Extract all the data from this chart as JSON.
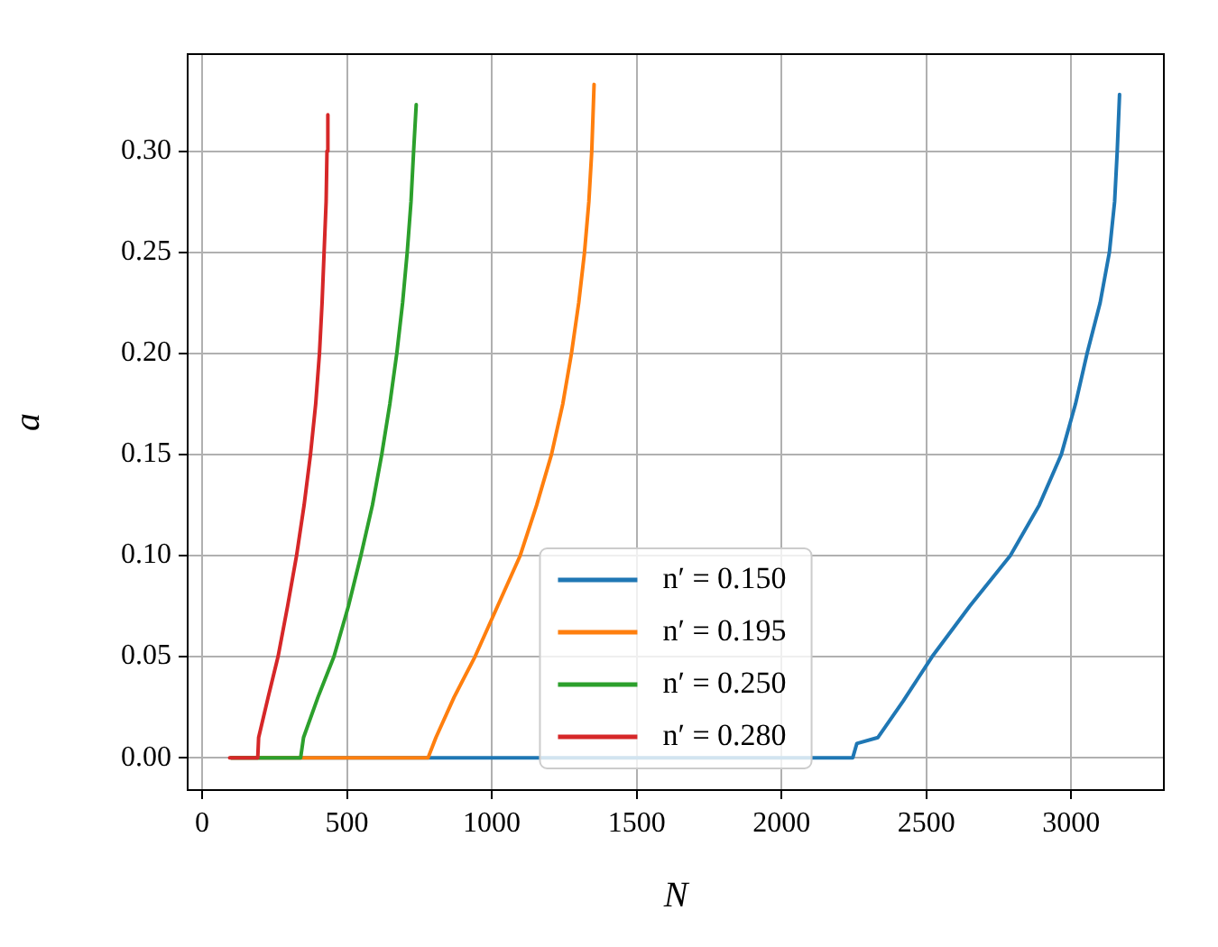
{
  "chart_data": {
    "type": "line",
    "xlabel": "N",
    "ylabel": "a",
    "xlim": [
      -50,
      3320
    ],
    "ylim": [
      -0.016,
      0.348
    ],
    "xticks": [
      0,
      500,
      1000,
      1500,
      2000,
      2500,
      3000
    ],
    "yticks": [
      {
        "value": 0,
        "label": "0.00"
      },
      {
        "value": 0.05,
        "label": "0.05"
      },
      {
        "value": 0.1,
        "label": "0.10"
      },
      {
        "value": 0.15,
        "label": "0.15"
      },
      {
        "value": 0.2,
        "label": "0.20"
      },
      {
        "value": 0.25,
        "label": "0.25"
      },
      {
        "value": 0.3,
        "label": "0.30"
      }
    ],
    "grid": true,
    "legend": "bottom",
    "line_style": "solid",
    "marker": "none",
    "series": [
      {
        "name": "n′ = 0.150",
        "color": "#1f77b4",
        "x": [
          100,
          2246,
          2260,
          2333,
          2420,
          2520,
          2650,
          2790,
          2890,
          2966,
          3015,
          3055,
          3100,
          3132,
          3150,
          3159,
          3167
        ],
        "values": [
          0,
          0,
          0.007,
          0.01,
          0.028,
          0.05,
          0.075,
          0.1,
          0.125,
          0.15,
          0.175,
          0.2,
          0.225,
          0.25,
          0.275,
          0.3,
          0.328
        ]
      },
      {
        "name": "n′ = 0.195",
        "color": "#ff7f0e",
        "x": [
          100,
          780,
          807,
          870,
          942,
          1020,
          1098,
          1155,
          1206,
          1245,
          1275,
          1300,
          1320,
          1335,
          1345,
          1353
        ],
        "values": [
          0,
          0,
          0.01,
          0.03,
          0.05,
          0.075,
          0.1,
          0.125,
          0.15,
          0.175,
          0.2,
          0.225,
          0.25,
          0.275,
          0.3,
          0.333
        ]
      },
      {
        "name": "n′ = 0.250",
        "color": "#2ca02c",
        "x": [
          100,
          340,
          350,
          400,
          455,
          505,
          548,
          588,
          620,
          648,
          672,
          692,
          708,
          721,
          730,
          739
        ],
        "values": [
          0,
          0,
          0.01,
          0.03,
          0.05,
          0.075,
          0.1,
          0.125,
          0.15,
          0.175,
          0.2,
          0.225,
          0.25,
          0.275,
          0.3,
          0.323
        ]
      },
      {
        "name": "n′ = 0.280",
        "color": "#d62728",
        "x": [
          95,
          192,
          195,
          228,
          262,
          295,
          326,
          352,
          374,
          392,
          405,
          414,
          421,
          428,
          431,
          434
        ],
        "values": [
          0,
          0,
          0.01,
          0.03,
          0.05,
          0.075,
          0.1,
          0.125,
          0.15,
          0.175,
          0.2,
          0.225,
          0.25,
          0.275,
          0.3,
          0.318
        ]
      }
    ]
  }
}
